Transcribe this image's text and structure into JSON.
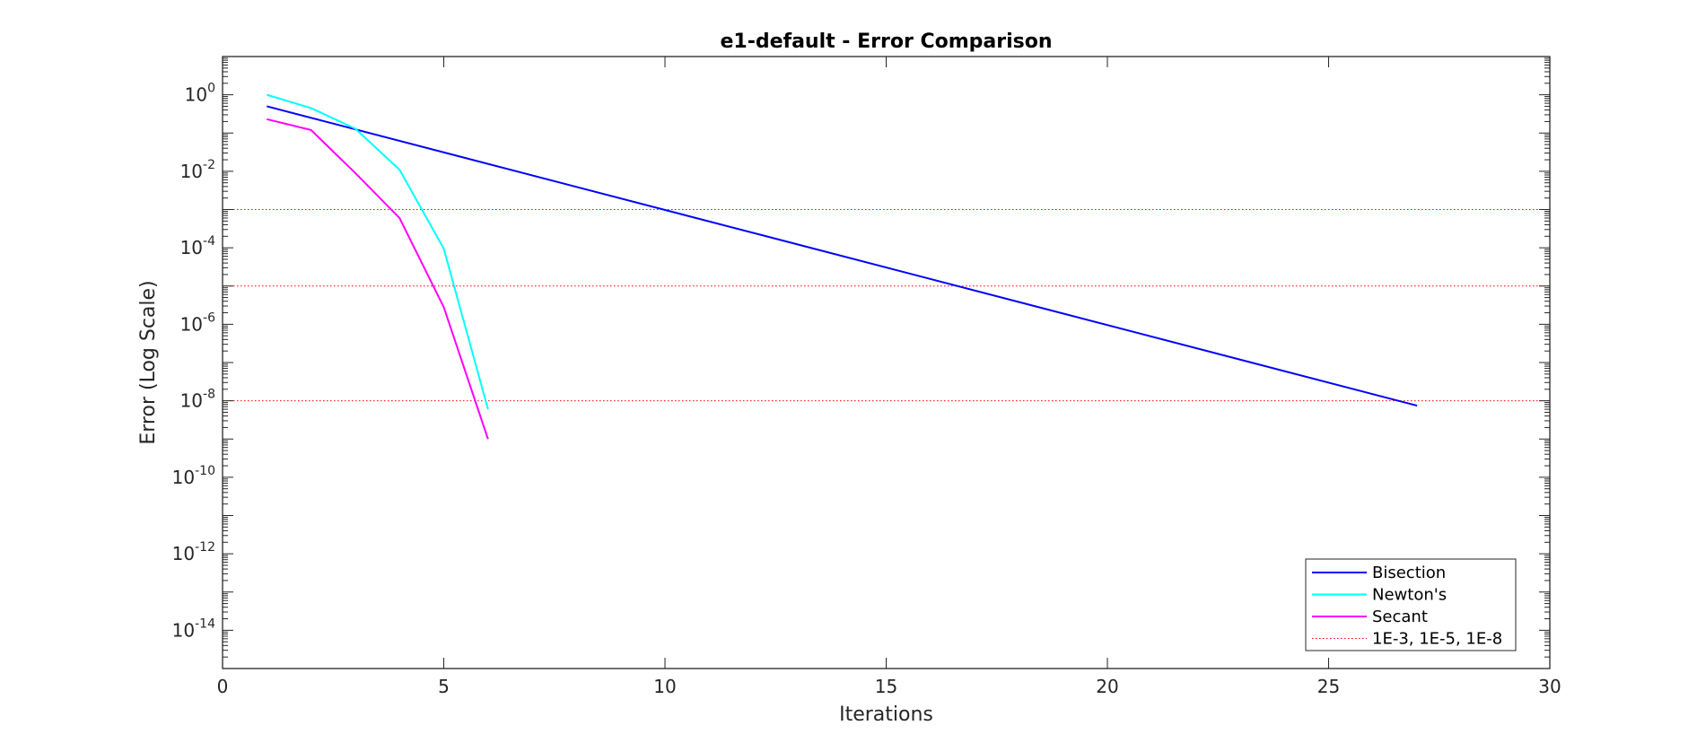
{
  "chart_data": {
    "type": "line",
    "title": "e1-default - Error Comparison",
    "xlabel": "Iterations",
    "ylabel": "Error (Log Scale)",
    "xlim": [
      0,
      30
    ],
    "ylim_log10": [
      -15,
      1
    ],
    "yscale": "log",
    "grid": false,
    "legend_position": "bottom-right",
    "x_ticks": [
      0,
      5,
      10,
      15,
      20,
      25,
      30
    ],
    "y_ticks": [
      {
        "base": "10",
        "exp": "0"
      },
      {
        "base": "10",
        "exp": "-2"
      },
      {
        "base": "10",
        "exp": "-4"
      },
      {
        "base": "10",
        "exp": "-6"
      },
      {
        "base": "10",
        "exp": "-8"
      },
      {
        "base": "10",
        "exp": "-10"
      },
      {
        "base": "10",
        "exp": "-12"
      },
      {
        "base": "10",
        "exp": "-14"
      }
    ],
    "series": [
      {
        "name": "Bisection",
        "color": "#0000ff",
        "x": [
          1,
          27
        ],
        "y": [
          0.5,
          7.45e-09
        ]
      },
      {
        "name": "Newton's",
        "color": "#00ffff",
        "x": [
          1,
          2,
          3,
          4,
          5,
          6
        ],
        "y": [
          1.0,
          0.45,
          0.13,
          0.011,
          9.5e-05,
          6e-09
        ]
      },
      {
        "name": "Secant",
        "color": "#ff00ff",
        "x": [
          1,
          2,
          3,
          4,
          5,
          6
        ],
        "y": [
          0.23,
          0.12,
          0.009,
          0.0006,
          2.8e-06,
          1e-09
        ]
      }
    ],
    "thresholds": {
      "name": "1E-3, 1E-5, 1E-8",
      "color": "#ff0000",
      "values": [
        0.001,
        1e-05,
        1e-08
      ]
    }
  }
}
